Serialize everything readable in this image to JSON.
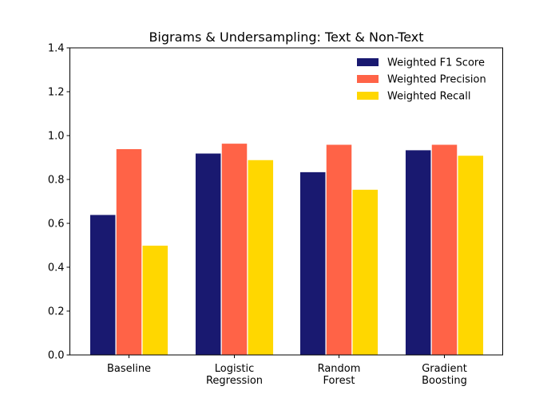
{
  "chart_data": {
    "type": "bar",
    "title": "Bigrams & Undersampling: Text & Non-Text",
    "xlabel": "",
    "ylabel": "",
    "ylim": [
      0,
      1.4
    ],
    "yticks": [
      "0.0",
      "0.2",
      "0.4",
      "0.6",
      "0.8",
      "1.0",
      "1.2",
      "1.4"
    ],
    "categories": [
      [
        "Baseline"
      ],
      [
        "Logistic",
        "Regression"
      ],
      [
        "Random",
        "Forest"
      ],
      [
        "Gradient",
        "Boosting"
      ]
    ],
    "series": [
      {
        "name": "Weighted F1 Score",
        "color": "#191970",
        "values": [
          0.64,
          0.92,
          0.835,
          0.935
        ]
      },
      {
        "name": "Weighted Precision",
        "color": "#FF6347",
        "values": [
          0.94,
          0.965,
          0.96,
          0.96
        ]
      },
      {
        "name": "Weighted Recall",
        "color": "#FFD700",
        "values": [
          0.5,
          0.89,
          0.755,
          0.91
        ]
      }
    ],
    "legend_position": "top-right",
    "grid": false
  }
}
